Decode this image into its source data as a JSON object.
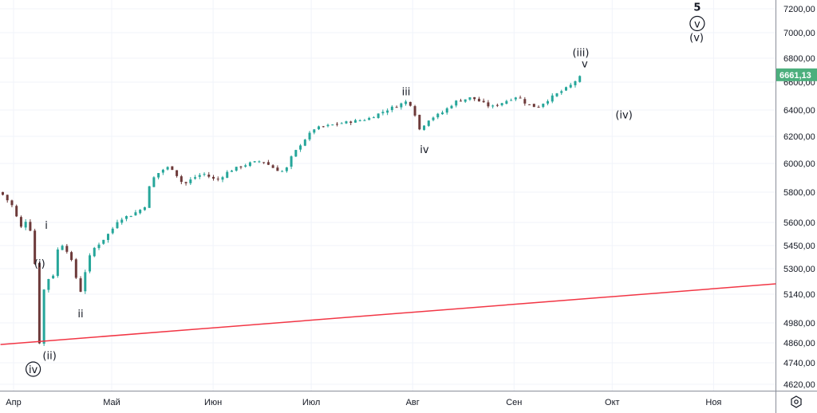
{
  "chart_data": {
    "type": "candlestick",
    "price_ticks": [
      7200,
      7000,
      6800,
      6600,
      6400,
      6200,
      6000,
      5800,
      5600,
      5450,
      5300,
      5140,
      4980,
      4860,
      4740,
      4620
    ],
    "price_tick_labels": [
      "7200,00",
      "7000,00",
      "6800,00",
      "6600,00",
      "6400,00",
      "6200,00",
      "6000,00",
      "5800,00",
      "5600,00",
      "5450,00",
      "5300,00",
      "5140,00",
      "4980,00",
      "4860,00",
      "4740,00",
      "4620,00"
    ],
    "x_labels": [
      {
        "label": "Апр",
        "day": 0
      },
      {
        "label": "Май",
        "day": 30
      },
      {
        "label": "Июн",
        "day": 61
      },
      {
        "label": "Июл",
        "day": 91
      },
      {
        "label": "Авг",
        "day": 122
      },
      {
        "label": "Сен",
        "day": 153
      },
      {
        "label": "Окт",
        "day": 183
      },
      {
        "label": "Ноя",
        "day": 214
      }
    ],
    "x_range_days": [
      -4,
      233
    ],
    "price_path": [
      [
        -4,
        5800
      ],
      [
        0,
        5700
      ],
      [
        2,
        5560
      ],
      [
        4,
        5620
      ],
      [
        6,
        5500
      ],
      [
        8,
        4830
      ],
      [
        9,
        5300
      ],
      [
        10,
        4860
      ],
      [
        11,
        5400
      ],
      [
        12,
        5250
      ],
      [
        14,
        5480
      ],
      [
        17,
        5400
      ],
      [
        19,
        5250
      ],
      [
        21,
        5130
      ],
      [
        22,
        5300
      ],
      [
        24,
        5420
      ],
      [
        27,
        5480
      ],
      [
        30,
        5550
      ],
      [
        32,
        5620
      ],
      [
        36,
        5650
      ],
      [
        40,
        5700
      ],
      [
        42,
        5880
      ],
      [
        45,
        5950
      ],
      [
        48,
        5980
      ],
      [
        52,
        5850
      ],
      [
        55,
        5900
      ],
      [
        58,
        5930
      ],
      [
        62,
        5880
      ],
      [
        66,
        5950
      ],
      [
        72,
        6000
      ],
      [
        76,
        6020
      ],
      [
        80,
        5960
      ],
      [
        83,
        5940
      ],
      [
        85,
        6050
      ],
      [
        88,
        6150
      ],
      [
        92,
        6260
      ],
      [
        100,
        6300
      ],
      [
        108,
        6330
      ],
      [
        114,
        6400
      ],
      [
        120,
        6460
      ],
      [
        122,
        6430
      ],
      [
        124,
        6250
      ],
      [
        127,
        6330
      ],
      [
        131,
        6380
      ],
      [
        135,
        6460
      ],
      [
        140,
        6490
      ],
      [
        146,
        6420
      ],
      [
        150,
        6460
      ],
      [
        154,
        6500
      ],
      [
        157,
        6440
      ],
      [
        160,
        6420
      ],
      [
        165,
        6500
      ],
      [
        170,
        6570
      ],
      [
        173,
        6640
      ],
      [
        174,
        6661
      ]
    ],
    "last_price": "6661,13",
    "last_price_color": "#4caf7d",
    "up_color": "#26a69a",
    "down_color": "#6d3a3a",
    "trendline": {
      "from": [
        -4,
        4850
      ],
      "to": [
        233,
        5205
      ],
      "color": "#f23645"
    },
    "wave_labels": [
      {
        "text": "iv",
        "circled": true,
        "day": 6,
        "price": 4700
      },
      {
        "text": "(ii)",
        "day": 11,
        "price": 4780
      },
      {
        "text": "(i)",
        "day": 8,
        "price": 5330
      },
      {
        "text": "i",
        "day": 10,
        "price": 5580
      },
      {
        "text": "ii",
        "day": 20.5,
        "price": 5030
      },
      {
        "text": "iii",
        "day": 120,
        "price": 6530
      },
      {
        "text": "iv",
        "day": 125.6,
        "price": 6100
      },
      {
        "text": "(iii)",
        "day": 173.4,
        "price": 6840
      },
      {
        "text": "v",
        "day": 174.6,
        "price": 6750
      },
      {
        "text": "(iv)",
        "day": 186.6,
        "price": 6360
      },
      {
        "text": "5",
        "day": 209,
        "price": 7210,
        "big": true
      },
      {
        "text": "v",
        "circled": true,
        "day": 209,
        "price": 7070
      },
      {
        "text": "(v)",
        "day": 208.8,
        "price": 6960
      }
    ]
  },
  "settings_icon": "gear-icon"
}
